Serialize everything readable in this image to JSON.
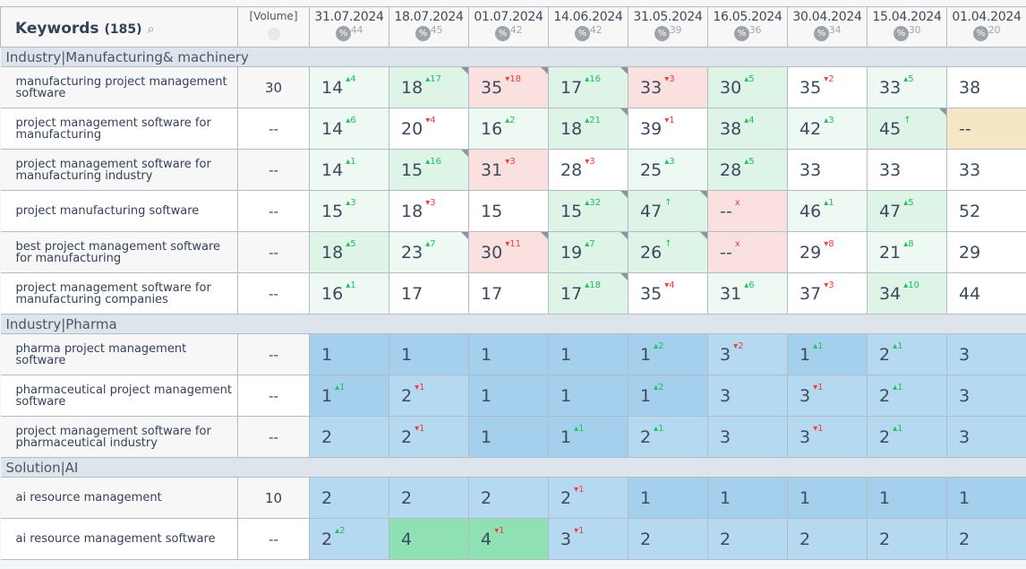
{
  "header": {
    "keywords_label": "Keywords",
    "keywords_count": "(185)",
    "volume_label": "[Volume]",
    "dates": [
      {
        "date": "31.07.2024",
        "pct": "44"
      },
      {
        "date": "18.07.2024",
        "pct": "45"
      },
      {
        "date": "01.07.2024",
        "pct": "42"
      },
      {
        "date": "14.06.2024",
        "pct": "42"
      },
      {
        "date": "31.05.2024",
        "pct": "39"
      },
      {
        "date": "16.05.2024",
        "pct": "36"
      },
      {
        "date": "30.04.2024",
        "pct": "34"
      },
      {
        "date": "15.04.2024",
        "pct": "30"
      },
      {
        "date": "01.04.2024",
        "pct": "20"
      }
    ]
  },
  "colors": {
    "w": "#ffffff",
    "lg": "#eef9f3",
    "g": "#ddf4e7",
    "r": "#fbe0e0",
    "y": "#f5e7c4",
    "b1": "#a4d0ee",
    "b2": "#b5d9f0",
    "gg": "#8fe1b4"
  },
  "groups": [
    {
      "name": "Industry|Manufacturing& machinery",
      "rows": [
        {
          "keyword": "manufacturing project management software",
          "volume": "30",
          "cells": [
            [
              "14",
              "4",
              "up",
              "lg",
              0
            ],
            [
              "18",
              "17",
              "up",
              "g",
              1
            ],
            [
              "35",
              "18",
              "dn",
              "r",
              1
            ],
            [
              "17",
              "16",
              "up",
              "g",
              1
            ],
            [
              "33",
              "3",
              "dn",
              "r",
              0
            ],
            [
              "30",
              "5",
              "up",
              "g",
              0
            ],
            [
              "35",
              "2",
              "dn",
              "w",
              0
            ],
            [
              "33",
              "5",
              "up",
              "lg",
              0
            ],
            [
              "38",
              "",
              "",
              "w",
              0
            ]
          ]
        },
        {
          "keyword": "project management software for manufacturing",
          "volume": "--",
          "cells": [
            [
              "14",
              "6",
              "up",
              "lg",
              0
            ],
            [
              "20",
              "4",
              "dn",
              "w",
              0
            ],
            [
              "16",
              "2",
              "up",
              "lg",
              0
            ],
            [
              "18",
              "21",
              "up",
              "g",
              1
            ],
            [
              "39",
              "1",
              "dn",
              "w",
              0
            ],
            [
              "38",
              "4",
              "up",
              "g",
              0
            ],
            [
              "42",
              "3",
              "up",
              "lg",
              0
            ],
            [
              "45",
              "↑",
              "new",
              "g",
              1
            ],
            [
              "--",
              "",
              "",
              "y",
              0
            ]
          ]
        },
        {
          "keyword": "project management software for manufacturing industry",
          "volume": "--",
          "cells": [
            [
              "14",
              "1",
              "up",
              "lg",
              0
            ],
            [
              "15",
              "16",
              "up",
              "g",
              1
            ],
            [
              "31",
              "3",
              "dn",
              "r",
              0
            ],
            [
              "28",
              "3",
              "dn",
              "w",
              0
            ],
            [
              "25",
              "3",
              "up",
              "lg",
              0
            ],
            [
              "28",
              "5",
              "up",
              "g",
              0
            ],
            [
              "33",
              "",
              "",
              "w",
              0
            ],
            [
              "33",
              "",
              "",
              "w",
              0
            ],
            [
              "33",
              "",
              "",
              "w",
              0
            ]
          ]
        },
        {
          "keyword": "project manufacturing software",
          "volume": "--",
          "cells": [
            [
              "15",
              "3",
              "up",
              "lg",
              0
            ],
            [
              "18",
              "3",
              "dn",
              "w",
              0
            ],
            [
              "15",
              "",
              "",
              "w",
              0
            ],
            [
              "15",
              "32",
              "up",
              "g",
              1
            ],
            [
              "47",
              "↑",
              "new",
              "g",
              1
            ],
            [
              "--",
              "x",
              "lost",
              "r",
              0
            ],
            [
              "46",
              "1",
              "up",
              "lg",
              0
            ],
            [
              "47",
              "5",
              "up",
              "g",
              0
            ],
            [
              "52",
              "",
              "",
              "w",
              0
            ]
          ]
        },
        {
          "keyword": "best project management software for manufacturing",
          "volume": "--",
          "cells": [
            [
              "18",
              "5",
              "up",
              "g",
              0
            ],
            [
              "23",
              "7",
              "up",
              "lg",
              1
            ],
            [
              "30",
              "11",
              "dn",
              "r",
              1
            ],
            [
              "19",
              "7",
              "up",
              "g",
              1
            ],
            [
              "26",
              "↑",
              "new",
              "g",
              1
            ],
            [
              "--",
              "x",
              "lost",
              "r",
              0
            ],
            [
              "29",
              "8",
              "dn",
              "w",
              0
            ],
            [
              "21",
              "8",
              "up",
              "lg",
              0
            ],
            [
              "29",
              "",
              "",
              "w",
              0
            ]
          ]
        },
        {
          "keyword": "project management software for manufacturing companies",
          "volume": "--",
          "cells": [
            [
              "16",
              "1",
              "up",
              "lg",
              0
            ],
            [
              "17",
              "",
              "",
              "w",
              0
            ],
            [
              "17",
              "",
              "",
              "w",
              0
            ],
            [
              "17",
              "18",
              "up",
              "g",
              1
            ],
            [
              "35",
              "4",
              "dn",
              "w",
              0
            ],
            [
              "31",
              "6",
              "up",
              "lg",
              0
            ],
            [
              "37",
              "3",
              "dn",
              "w",
              0
            ],
            [
              "34",
              "10",
              "up",
              "g",
              0
            ],
            [
              "44",
              "",
              "",
              "w",
              0
            ]
          ]
        }
      ]
    },
    {
      "name": "Industry|Pharma",
      "rows": [
        {
          "keyword": "pharma project management software",
          "volume": "--",
          "cells": [
            [
              "1",
              "",
              "",
              "b1",
              0
            ],
            [
              "1",
              "",
              "",
              "b1",
              0
            ],
            [
              "1",
              "",
              "",
              "b1",
              0
            ],
            [
              "1",
              "",
              "",
              "b1",
              0
            ],
            [
              "1",
              "2",
              "up",
              "b1",
              0
            ],
            [
              "3",
              "2",
              "dn",
              "b2",
              0
            ],
            [
              "1",
              "1",
              "up",
              "b1",
              0
            ],
            [
              "2",
              "1",
              "up",
              "b2",
              0
            ],
            [
              "3",
              "",
              "",
              "b2",
              0
            ]
          ]
        },
        {
          "keyword": "pharmaceutical project management software",
          "volume": "--",
          "cells": [
            [
              "1",
              "1",
              "up",
              "b1",
              0
            ],
            [
              "2",
              "1",
              "dn",
              "b2",
              0
            ],
            [
              "1",
              "",
              "",
              "b1",
              0
            ],
            [
              "1",
              "",
              "",
              "b1",
              0
            ],
            [
              "1",
              "2",
              "up",
              "b1",
              0
            ],
            [
              "3",
              "",
              "",
              "b2",
              0
            ],
            [
              "3",
              "1",
              "dn",
              "b2",
              0
            ],
            [
              "2",
              "1",
              "up",
              "b2",
              0
            ],
            [
              "3",
              "",
              "",
              "b2",
              0
            ]
          ]
        },
        {
          "keyword": "project management software for pharmaceutical industry",
          "volume": "--",
          "cells": [
            [
              "2",
              "",
              "",
              "b2",
              0
            ],
            [
              "2",
              "1",
              "dn",
              "b2",
              0
            ],
            [
              "1",
              "",
              "",
              "b1",
              0
            ],
            [
              "1",
              "1",
              "up",
              "b1",
              0
            ],
            [
              "2",
              "1",
              "up",
              "b2",
              0
            ],
            [
              "3",
              "",
              "",
              "b2",
              0
            ],
            [
              "3",
              "1",
              "dn",
              "b2",
              0
            ],
            [
              "2",
              "1",
              "up",
              "b2",
              0
            ],
            [
              "3",
              "",
              "",
              "b2",
              0
            ]
          ]
        }
      ]
    },
    {
      "name": "Solution|AI",
      "rows": [
        {
          "keyword": "ai resource management",
          "volume": "10",
          "cells": [
            [
              "2",
              "",
              "",
              "b2",
              0
            ],
            [
              "2",
              "",
              "",
              "b2",
              0
            ],
            [
              "2",
              "",
              "",
              "b2",
              0
            ],
            [
              "2",
              "1",
              "dn",
              "b2",
              0
            ],
            [
              "1",
              "",
              "",
              "b1",
              0
            ],
            [
              "1",
              "",
              "",
              "b1",
              0
            ],
            [
              "1",
              "",
              "",
              "b1",
              0
            ],
            [
              "1",
              "",
              "",
              "b1",
              0
            ],
            [
              "1",
              "",
              "",
              "b1",
              0
            ]
          ]
        },
        {
          "keyword": "ai resource management software",
          "volume": "--",
          "cells": [
            [
              "2",
              "2",
              "up",
              "b2",
              0
            ],
            [
              "4",
              "",
              "",
              "gg",
              0
            ],
            [
              "4",
              "1",
              "dn",
              "gg",
              0
            ],
            [
              "3",
              "1",
              "dn",
              "b2",
              0
            ],
            [
              "2",
              "",
              "",
              "b2",
              0
            ],
            [
              "2",
              "",
              "",
              "b2",
              0
            ],
            [
              "2",
              "",
              "",
              "b2",
              0
            ],
            [
              "2",
              "",
              "",
              "b2",
              0
            ],
            [
              "2",
              "",
              "",
              "b2",
              0
            ]
          ]
        }
      ]
    }
  ]
}
